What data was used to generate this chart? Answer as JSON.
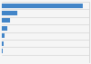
{
  "values": [
    90600,
    17000,
    9200,
    5800,
    3200,
    2000,
    900,
    500
  ],
  "bar_color": "#4285c8",
  "background_color": "#f5f5f5",
  "plot_background": "#ffffff",
  "border_color": "#cccccc",
  "ylim": [
    -0.5,
    7.5
  ],
  "xlim": [
    0,
    98000
  ]
}
